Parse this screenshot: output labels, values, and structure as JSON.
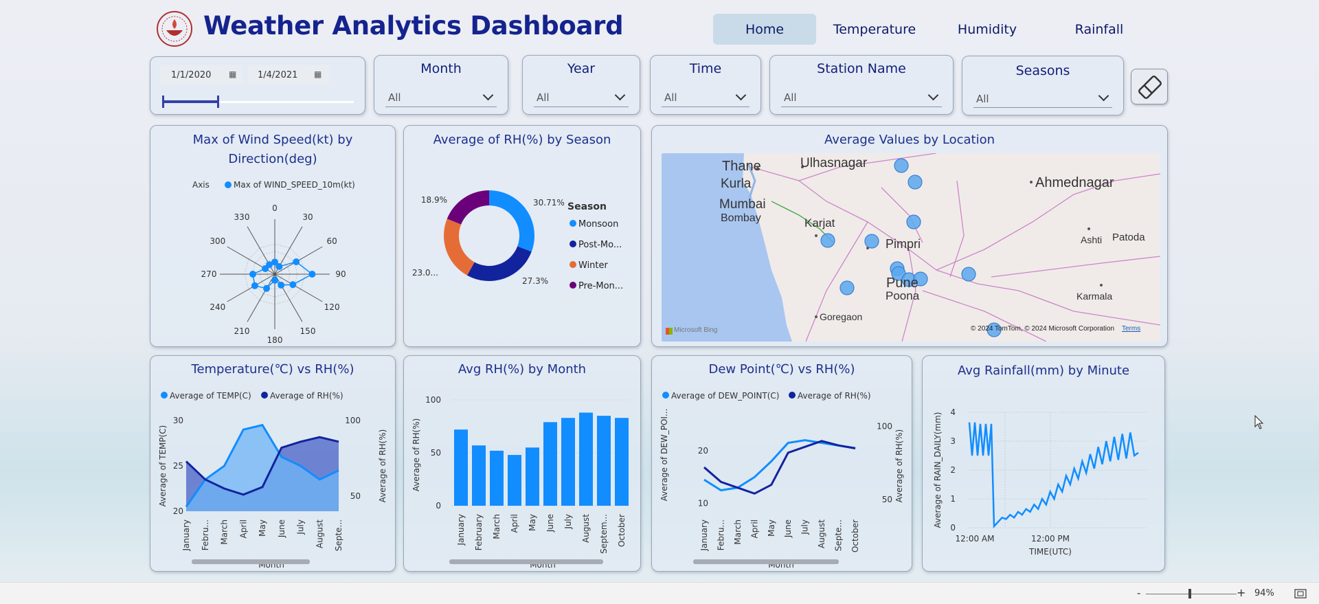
{
  "header": {
    "title": "Weather Analytics Dashboard",
    "nav": [
      {
        "label": "Home",
        "active": true
      },
      {
        "label": "Temperature",
        "active": false
      },
      {
        "label": "Humidity",
        "active": false
      },
      {
        "label": "Rainfall",
        "active": false
      }
    ]
  },
  "filters": {
    "date_start": "1/1/2020",
    "date_end": "1/4/2021",
    "slider_fraction": 0.29,
    "month": {
      "label": "Month",
      "value": "All"
    },
    "year": {
      "label": "Year",
      "value": "All"
    },
    "time": {
      "label": "Time",
      "value": "All"
    },
    "station": {
      "label": "Station Name",
      "value": "All"
    },
    "seasons": {
      "label": "Seasons",
      "value": "All"
    },
    "eraser_icon": "eraser-icon"
  },
  "cards": {
    "radar": {
      "title_line1": "Max of Wind Speed(kt) by",
      "title_line2": "Direction(deg)",
      "legend_axis": "Axis",
      "legend_series": "Max of WIND_SPEED_10m(kt)"
    },
    "donut": {
      "title": "Average of RH(%) by Season",
      "legend_title": "Season"
    },
    "map": {
      "title": "Average Values by Location",
      "attribution": "© 2024 TomTom, © 2024 Microsoft Corporation",
      "terms": "Terms",
      "bing": "Microsoft Bing",
      "places": [
        "Thane",
        "Ulhasnagar",
        "Kurla",
        "Mumbai",
        "Bombay",
        "Karjat",
        "Pimpri",
        "Pune",
        "Poona",
        "Goregaon",
        "Ahmednagar",
        "Ashti",
        "Patoda",
        "Karmala"
      ]
    },
    "temp_rh": {
      "title": "Temperature(℃) vs RH(%)",
      "xlabel": "Month",
      "ylabel_left": "Average of TEMP(C)",
      "ylabel_right": "Average of RH(%)"
    },
    "rh_month": {
      "title": "Avg RH(%) by Month",
      "xlabel": "Month",
      "ylabel": "Average of RH(%)"
    },
    "dew_rh": {
      "title": "Dew Point(℃) vs RH(%)",
      "xlabel": "Month",
      "ylabel_left": "Average of DEW_POI...",
      "ylabel_right": "Average of RH(%)"
    },
    "rain": {
      "title": "Avg Rainfall(mm) by Minute",
      "xlabel": "TIME(UTC)",
      "ylabel": "Average of RAIN_DAILY(mm)"
    }
  },
  "status_bar": {
    "zoom": "94%",
    "zoom_fraction": 0.47,
    "minus": "-",
    "plus": "+"
  },
  "colors": {
    "light_blue": "#118dff",
    "dark_blue": "#12239e",
    "orange": "#e66c37",
    "purple": "#6b007b",
    "title": "#1c2f8c"
  },
  "chart_data": [
    {
      "type": "radar",
      "title": "Max of Wind Speed(kt) by Direction(deg)",
      "categories": [
        "0",
        "30",
        "60",
        "90",
        "120",
        "150",
        "180",
        "210",
        "240",
        "270",
        "300",
        "330"
      ],
      "series": [
        {
          "name": "Max of WIND_SPEED_10m(kt)",
          "values": [
            0.22,
            0.16,
            0.45,
            0.68,
            0.38,
            0.23,
            0.11,
            0.3,
            0.42,
            0.4,
            0.2,
            0.2
          ]
        }
      ],
      "legend": "top"
    },
    {
      "type": "pie",
      "title": "Average of RH(%) by Season",
      "categories": [
        "Monsoon",
        "Post-Mo...",
        "Winter",
        "Pre-Mon..."
      ],
      "values": [
        30.71,
        27.3,
        23.0,
        18.9
      ],
      "slice_labels": [
        "30.71%",
        "27.3%",
        "23.0...",
        "18.9%"
      ],
      "legend_title": "Season"
    },
    {
      "type": "scatter",
      "title": "Average Values by Location",
      "note": "map bubbles",
      "points": 13
    },
    {
      "type": "area",
      "title": "Temperature(℃) vs RH(%)",
      "categories": [
        "January",
        "Febru...",
        "March",
        "April",
        "May",
        "June",
        "July",
        "August",
        "Septe..."
      ],
      "series": [
        {
          "name": "Average of TEMP(C)",
          "values": [
            20.5,
            23.5,
            25.0,
            29.0,
            29.5,
            26.0,
            25.0,
            23.5,
            24.5
          ],
          "axis": "left"
        },
        {
          "name": "Average of RH(%)",
          "values": [
            73,
            61,
            55,
            51,
            56,
            82,
            86,
            89,
            86
          ],
          "axis": "right"
        }
      ],
      "ylim_left": [
        20,
        30
      ],
      "yticks_left": [
        "20",
        "25",
        "30"
      ],
      "ylim_right": [
        40,
        100
      ],
      "yticks_right": [
        "50",
        "100"
      ],
      "xlabel": "Month"
    },
    {
      "type": "bar",
      "title": "Avg RH(%) by Month",
      "categories": [
        "January",
        "February",
        "March",
        "April",
        "May",
        "June",
        "July",
        "August",
        "Septem...",
        "October"
      ],
      "values": [
        72,
        57,
        52,
        48,
        55,
        79,
        83,
        88,
        85,
        83
      ],
      "ylim": [
        0,
        100
      ],
      "yticks": [
        "0",
        "50",
        "100"
      ],
      "xlabel": "Month",
      "ylabel": "Average of RH(%)"
    },
    {
      "type": "line",
      "title": "Dew Point(℃) vs RH(%)",
      "categories": [
        "January",
        "Febru...",
        "March",
        "April",
        "May",
        "June",
        "July",
        "August",
        "Septe...",
        "October"
      ],
      "series": [
        {
          "name": "Average of DEW_POINT(C)",
          "values": [
            14.5,
            12.5,
            13.0,
            15.0,
            18.0,
            21.5,
            22.0,
            21.5,
            21.0,
            20.5
          ],
          "axis": "left"
        },
        {
          "name": "Average of RH(%)",
          "values": [
            72,
            62,
            58,
            54,
            60,
            82,
            86,
            90,
            87,
            85
          ],
          "axis": "right"
        }
      ],
      "ylim_left": [
        8,
        26
      ],
      "yticks_left": [
        "10",
        "20"
      ],
      "ylim_right": [
        40,
        105
      ],
      "yticks_right": [
        "50",
        "100"
      ],
      "xlabel": "Month"
    },
    {
      "type": "line",
      "title": "Avg Rainfall(mm) by Minute",
      "xticks": [
        "12:00 AM",
        "12:00 PM"
      ],
      "ylim": [
        0,
        4
      ],
      "yticks": [
        "0",
        "1",
        "2",
        "3",
        "4"
      ],
      "xlabel": "TIME(UTC)",
      "ylabel": "Average of RAIN_DAILY(mm)",
      "series": [
        {
          "name": "Average of RAIN_DAILY(mm)",
          "values": [
            3.65,
            2.5,
            3.65,
            2.5,
            3.6,
            2.5,
            3.6,
            2.5,
            3.6,
            0.05,
            0.2,
            0.35,
            0.3,
            0.45,
            0.35,
            0.55,
            0.45,
            0.65,
            0.55,
            0.8,
            0.65,
            1.0,
            0.8,
            1.25,
            1.0,
            1.5,
            1.25,
            1.8,
            1.5,
            2.05,
            1.7,
            2.3,
            1.9,
            2.55,
            2.05,
            2.8,
            2.2,
            3.0,
            2.3,
            3.15,
            2.35,
            3.25,
            2.4,
            3.3,
            2.5,
            2.6
          ]
        }
      ]
    }
  ]
}
